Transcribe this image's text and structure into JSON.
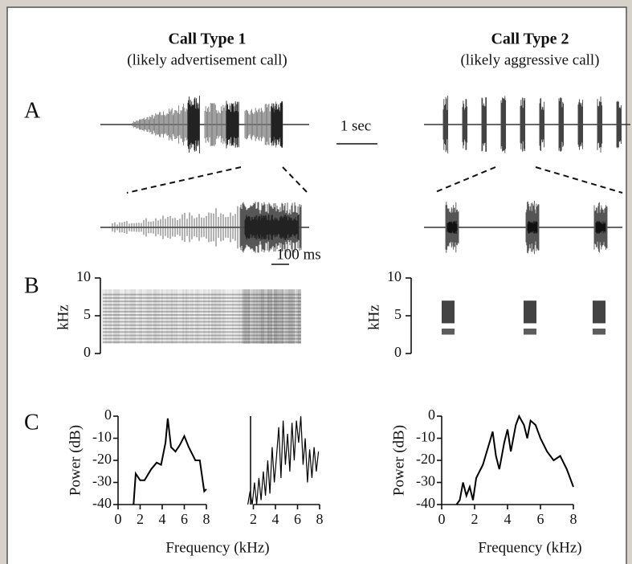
{
  "figure": {
    "columns": [
      {
        "title": "Call Type 1",
        "subtitle": "(likely advertisement call)"
      },
      {
        "title": "Call Type 2",
        "subtitle": "(likely aggressive call)"
      }
    ],
    "panel_labels": [
      "A",
      "B",
      "C"
    ],
    "scale_bars": [
      "1 sec",
      "100 ms"
    ],
    "spectrogram_axes": [
      {
        "ylabel": "kHz",
        "ylim": [
          0,
          10
        ],
        "yticks": [
          0,
          5,
          10
        ]
      },
      {
        "ylabel": "kHz",
        "ylim": [
          0,
          10
        ],
        "yticks": [
          0,
          5,
          10
        ]
      }
    ]
  },
  "chart_data": [
    {
      "type": "line",
      "ylabel": "Power (dB)",
      "xlabel": "Frequency (kHz)",
      "color": "#000000",
      "xlim": [
        0,
        8
      ],
      "ylim": [
        -40,
        0
      ],
      "xticks": [
        0,
        2,
        4,
        6,
        8
      ],
      "yticks": [
        0,
        -10,
        -20,
        -30,
        -40
      ],
      "x": [
        1.4,
        1.6,
        2,
        2.4,
        3,
        3.5,
        3.9,
        4.3,
        4.5,
        4.8,
        5.2,
        5.6,
        6,
        6.4,
        7,
        7.4,
        7.8,
        8
      ],
      "values": [
        -40,
        -26,
        -29,
        -29,
        -24,
        -21,
        -22,
        -12,
        -1,
        -14,
        -16,
        -13,
        -9,
        -14,
        -20,
        -20,
        -34,
        -33
      ]
    },
    {
      "type": "line",
      "color": "#000000",
      "xlim": [
        0,
        8
      ],
      "ylim": [
        -40,
        0
      ],
      "xticks": [
        2,
        4,
        6,
        8
      ],
      "x": [
        1.5,
        1.7,
        1.9,
        2.1,
        2.3,
        2.5,
        2.7,
        2.9,
        3.1,
        3.3,
        3.5,
        3.7,
        3.9,
        4.1,
        4.3,
        4.5,
        4.7,
        4.9,
        5.1,
        5.3,
        5.5,
        5.7,
        5.9,
        6.1,
        6.3,
        6.5,
        6.7,
        6.9,
        7.1,
        7.3,
        7.5,
        7.7,
        7.9
      ],
      "values": [
        -40,
        -34,
        -40,
        -30,
        -40,
        -28,
        -38,
        -25,
        -36,
        -20,
        -35,
        -14,
        -30,
        -18,
        -5,
        -28,
        -2,
        -22,
        -8,
        -25,
        -3,
        -20,
        -2,
        -12,
        0,
        -22,
        -10,
        -30,
        -15,
        -28,
        -14,
        -25,
        -16
      ]
    },
    {
      "type": "line",
      "ylabel": "Power (dB)",
      "xlabel": "Frequency (kHz)",
      "color": "#000000",
      "xlim": [
        0,
        8
      ],
      "ylim": [
        -40,
        0
      ],
      "xticks": [
        0,
        2,
        4,
        6,
        8
      ],
      "yticks": [
        0,
        -10,
        -20,
        -30,
        -40
      ],
      "x": [
        0.9,
        1.1,
        1.3,
        1.5,
        1.7,
        1.9,
        2.1,
        2.5,
        2.9,
        3.1,
        3.3,
        3.5,
        3.8,
        4.0,
        4.2,
        4.5,
        4.7,
        5.0,
        5.2,
        5.4,
        5.7,
        6.0,
        6.4,
        6.8,
        7.2,
        7.6,
        8.0
      ],
      "values": [
        -40,
        -38,
        -30,
        -36,
        -32,
        -38,
        -28,
        -22,
        -12,
        -7,
        -18,
        -24,
        -12,
        -6,
        -16,
        -4,
        0,
        -4,
        -10,
        -2,
        -4,
        -10,
        -16,
        -20,
        -18,
        -24,
        -32
      ]
    }
  ]
}
